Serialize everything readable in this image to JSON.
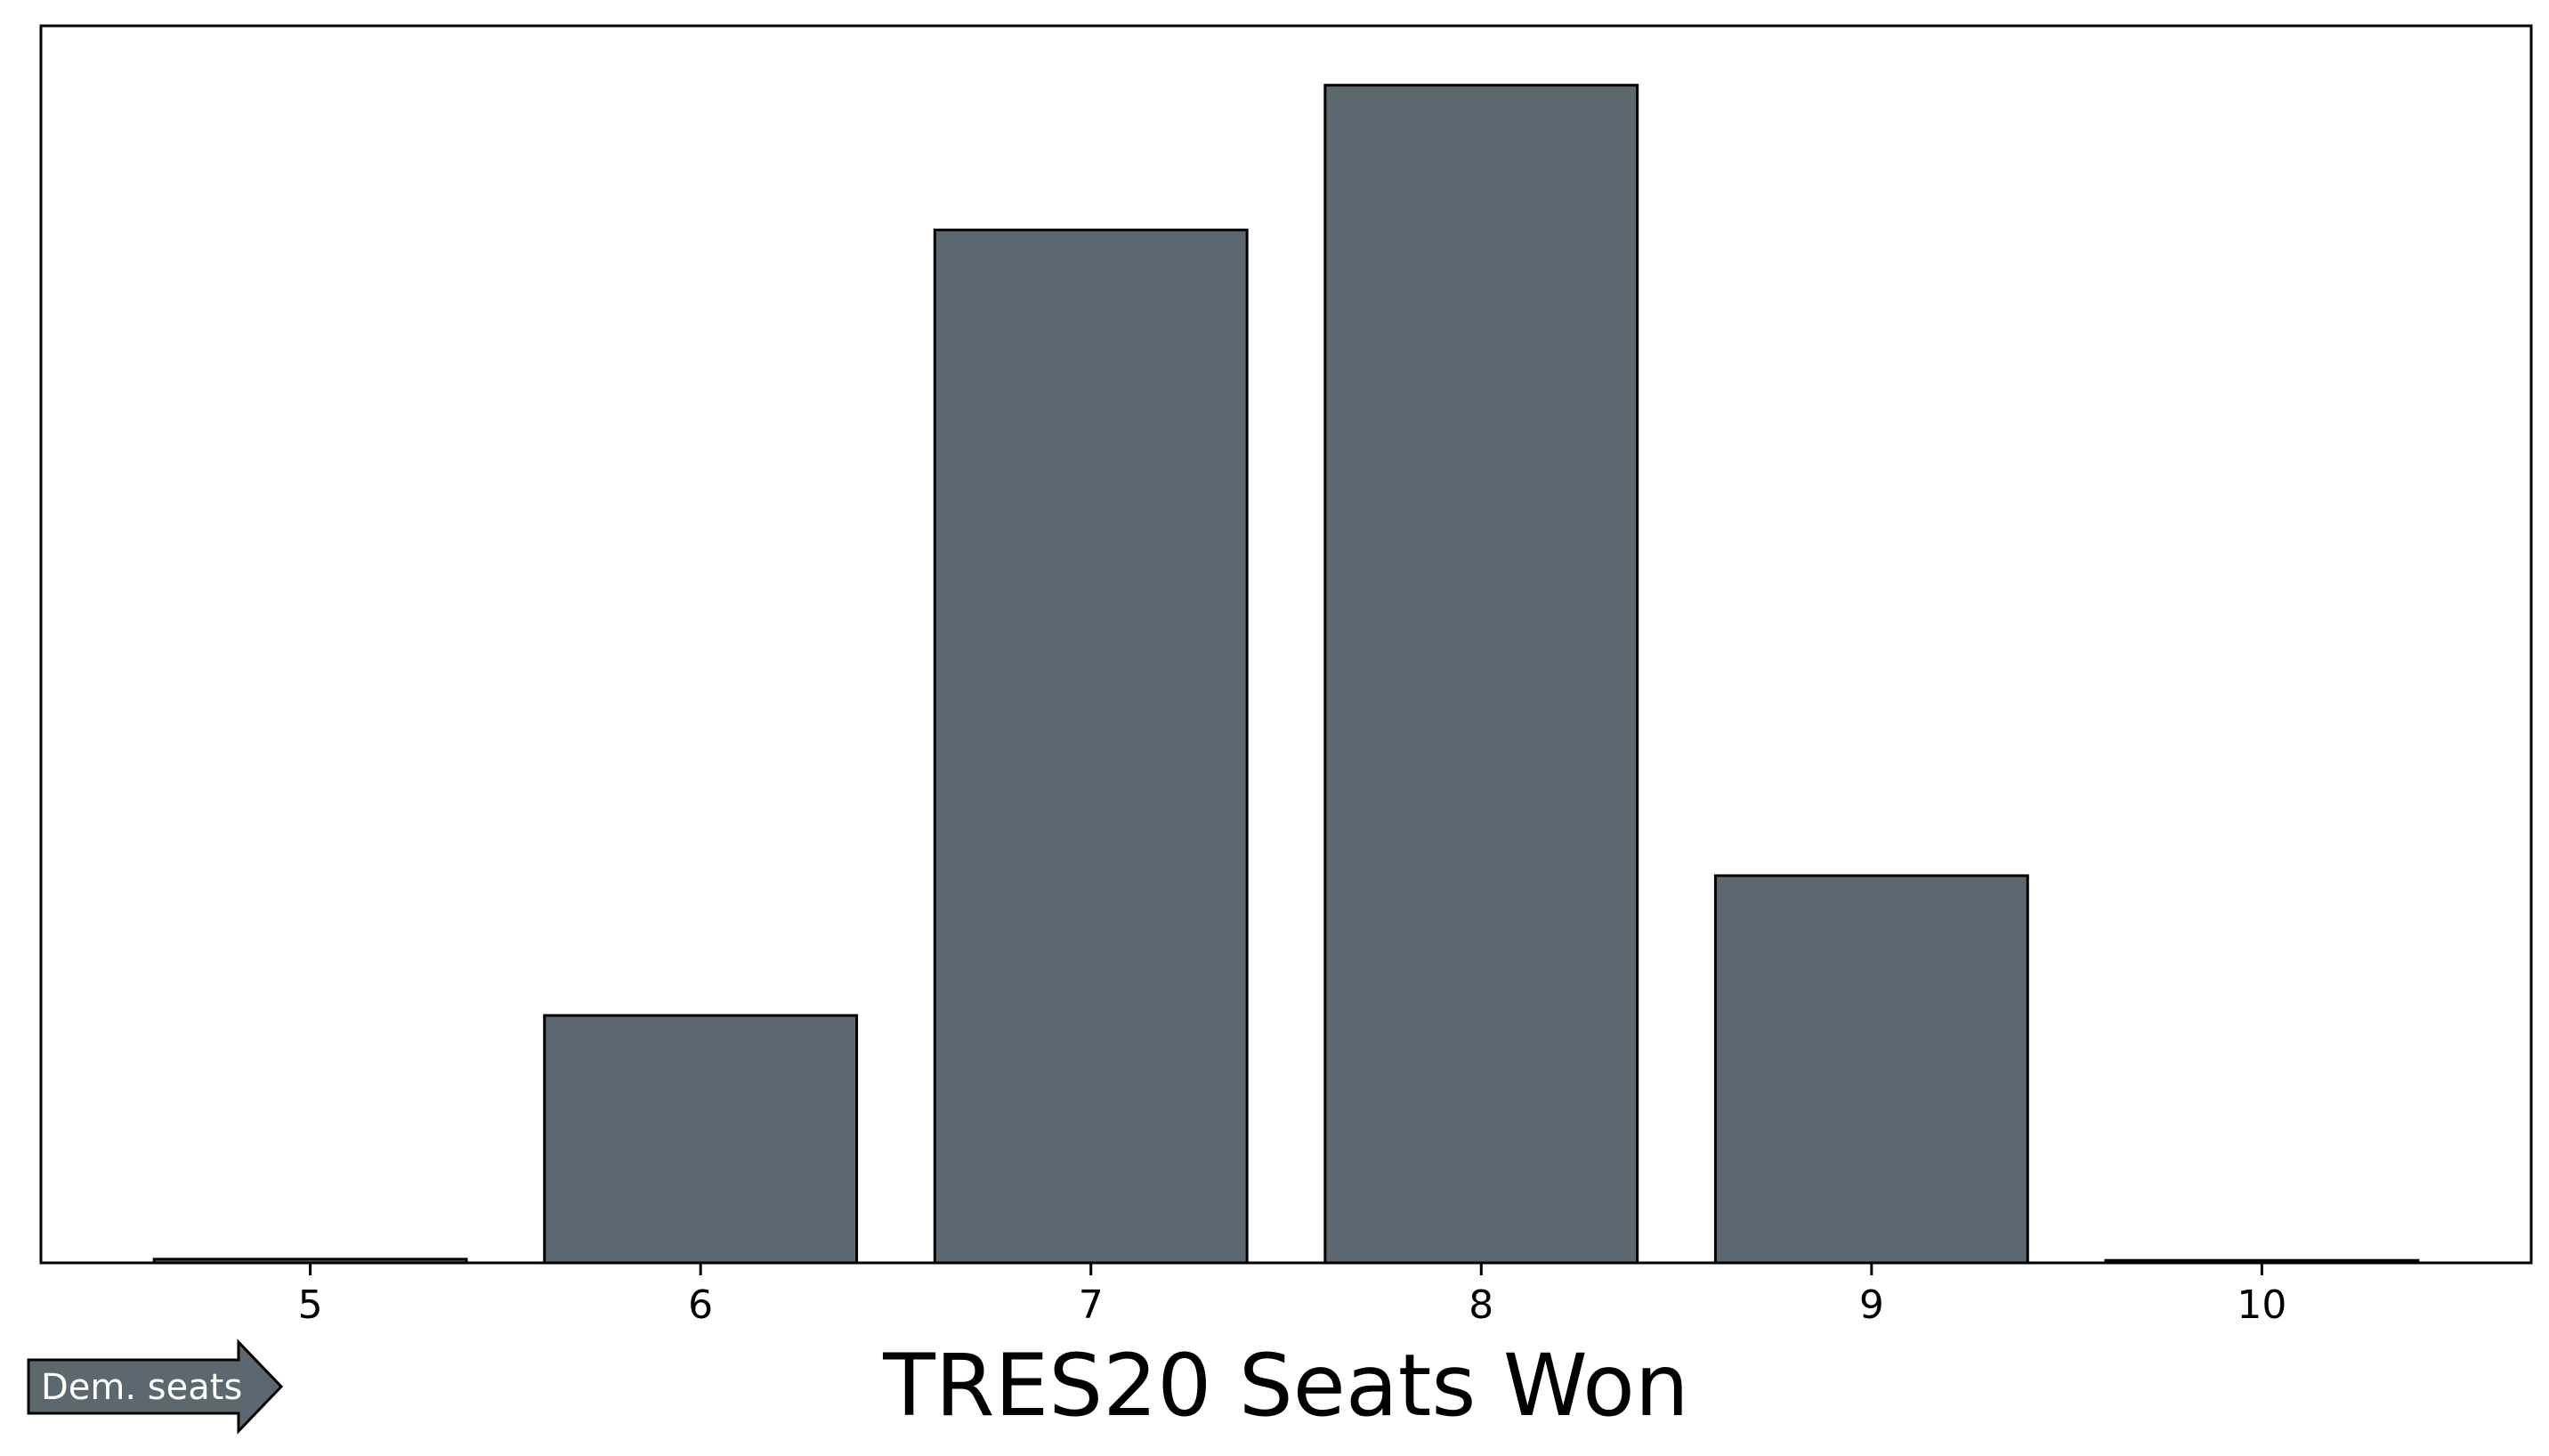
{
  "chart_data": {
    "type": "bar",
    "categories": [
      "5",
      "6",
      "7",
      "8",
      "9",
      "10"
    ],
    "x": [
      5,
      6,
      7,
      8,
      9,
      10
    ],
    "values": [
      0.3,
      20,
      83.5,
      95.2,
      31.3,
      0.2
    ],
    "title": "",
    "xlabel": "TRES20 Seats Won",
    "ylabel": "",
    "ylim": [
      0,
      100
    ],
    "grid": false,
    "bar_color": "#5d6770",
    "edge_color": "#000000"
  },
  "annotation": {
    "arrow_label": "Dem. seats",
    "arrow_color": "#5d6770"
  }
}
